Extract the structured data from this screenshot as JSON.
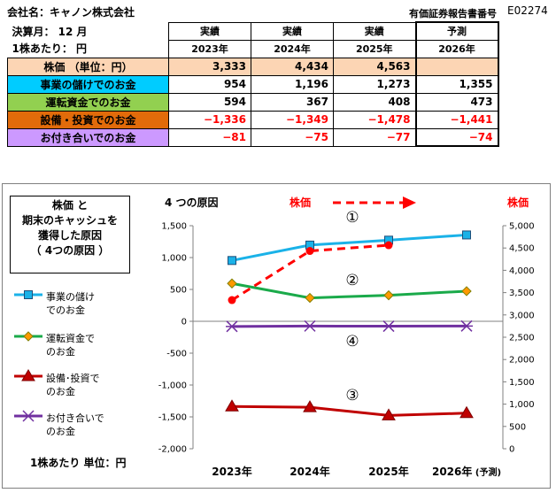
{
  "header": {
    "company": "会社名：キャノン株式会社",
    "edinet_label": "有価証券報告書番号",
    "edinet_code": "E02274",
    "fiscal_month": "決算月： 12 月",
    "per_share": "1株あたり： 円"
  },
  "table": {
    "status_labels": [
      "実績",
      "実績",
      "実績",
      "予測"
    ],
    "years": [
      "2023年",
      "2024年",
      "2025年",
      "2026年"
    ],
    "rows": [
      {
        "label": "株価 （単位：円）",
        "values": [
          "3,333",
          "4,434",
          "4,563",
          ""
        ],
        "bg": "#fcd5b4"
      },
      {
        "label": "事業の儲けでのお金",
        "values": [
          "954",
          "1,196",
          "1,273",
          "1,355"
        ],
        "bg": "#00ccff"
      },
      {
        "label": "運転資金でのお金",
        "values": [
          "594",
          "367",
          "408",
          "473"
        ],
        "bg": "#92d050"
      },
      {
        "label": "設備・投資でのお金",
        "values": [
          "−1,336",
          "−1,349",
          "−1,478",
          "−1,441"
        ],
        "bg": "#e26b0a"
      },
      {
        "label": "お付き合いでのお金",
        "values": [
          "−81",
          "−75",
          "−77",
          "−74"
        ],
        "bg": "#cc99ff"
      }
    ]
  },
  "chart_box": {
    "reason_lines": [
      "株価 と",
      "期末のキャッシュを",
      "獲得した原因",
      "（ 4つの原因 ）"
    ],
    "four_causes": "4 つの原因",
    "stock_arrow_label": "株価",
    "right_axis_title": "株価",
    "unit_note": "1株あたり 単位：円",
    "circle_labels": [
      "①",
      "②",
      "③",
      "④"
    ]
  },
  "chart_data": {
    "type": "line",
    "categories": [
      "2023年",
      "2024年",
      "2025年",
      "2026年 (予測)"
    ],
    "left_axis": {
      "min": -2000,
      "max": 1500,
      "step": 500
    },
    "right_axis": {
      "min": 0,
      "max": 5000,
      "step": 500
    },
    "series": [
      {
        "name": "事業の儲けでのお金",
        "values": [
          954,
          1196,
          1273,
          1355
        ],
        "color": "#1ab2e8",
        "marker": "square",
        "axis": "left"
      },
      {
        "name": "運転資金でのお金",
        "values": [
          594,
          367,
          408,
          473
        ],
        "color": "#1aaa4a",
        "marker": "diamond",
        "axis": "left"
      },
      {
        "name": "設備・投資でのお金",
        "values": [
          -1336,
          -1349,
          -1478,
          -1441
        ],
        "color": "#c00000",
        "marker": "triangle",
        "axis": "left"
      },
      {
        "name": "お付き合いでのお金",
        "values": [
          -81,
          -75,
          -77,
          -74
        ],
        "color": "#7030a0",
        "marker": "star",
        "axis": "left"
      },
      {
        "name": "株価",
        "values": [
          3333,
          4434,
          4563,
          null
        ],
        "color": "#ff0000",
        "marker": "circle",
        "axis": "right",
        "dashed": true
      }
    ],
    "legend": [
      {
        "lines": [
          "事業の儲け",
          "でのお金"
        ],
        "color": "#1ab2e8",
        "marker": "square"
      },
      {
        "lines": [
          "運転資金で",
          "のお金"
        ],
        "color": "#1aaa4a",
        "marker": "diamond"
      },
      {
        "lines": [
          "設備･投資で",
          "のお金"
        ],
        "color": "#c00000",
        "marker": "triangle"
      },
      {
        "lines": [
          "お付き合いで",
          "のお金"
        ],
        "color": "#7030a0",
        "marker": "star"
      }
    ],
    "legend_placement": "left",
    "grid": false
  }
}
